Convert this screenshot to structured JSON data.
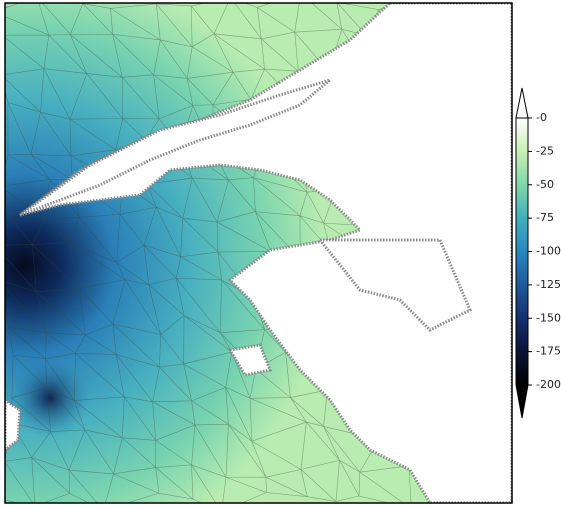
{
  "colorbar": {
    "lim": [
      -200,
      0
    ],
    "ticks": [
      {
        "value": 0,
        "label": "-0"
      },
      -25,
      -50,
      -75,
      -100,
      -125,
      -150,
      -175,
      -200
    ]
  }
}
